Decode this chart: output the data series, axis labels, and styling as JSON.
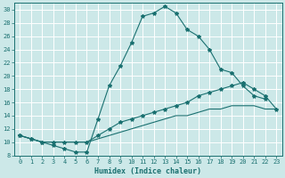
{
  "xlabel": "Humidex (Indice chaleur)",
  "bg_color": "#cce8e8",
  "grid_color": "#ffffff",
  "line_color": "#1a7070",
  "xlim": [
    -0.5,
    23.5
  ],
  "ylim": [
    8,
    31
  ],
  "yticks": [
    8,
    10,
    12,
    14,
    16,
    18,
    20,
    22,
    24,
    26,
    28,
    30
  ],
  "xticks": [
    0,
    1,
    2,
    3,
    4,
    5,
    6,
    7,
    8,
    9,
    10,
    11,
    12,
    13,
    14,
    15,
    16,
    17,
    18,
    19,
    20,
    21,
    22,
    23
  ],
  "lines": [
    {
      "x": [
        0,
        1,
        2,
        3,
        4,
        5,
        6,
        7,
        8,
        9,
        10,
        11,
        12,
        13,
        14,
        15,
        16,
        17,
        18,
        19,
        20,
        21,
        22
      ],
      "y": [
        11,
        10.5,
        10,
        9.5,
        9,
        8.5,
        8.5,
        13.5,
        18.5,
        21.5,
        25,
        29,
        29.5,
        30.5,
        29.5,
        27,
        26,
        24,
        21,
        20.5,
        18.5,
        17,
        16.5
      ],
      "marker": true
    },
    {
      "x": [
        0,
        1,
        2,
        3,
        4,
        5,
        6,
        7,
        8,
        9,
        10,
        11,
        12,
        13,
        14,
        15,
        16,
        17,
        18,
        19,
        20,
        21,
        22,
        23
      ],
      "y": [
        11,
        10.5,
        10,
        10,
        10,
        10,
        10,
        11,
        12,
        13,
        13.5,
        14,
        14.5,
        15,
        15.5,
        16,
        17,
        17.5,
        18,
        18.5,
        19,
        18,
        17,
        15
      ],
      "marker": true
    },
    {
      "x": [
        0,
        1,
        2,
        3,
        4,
        5,
        6,
        7,
        8,
        9,
        10,
        11,
        12,
        13,
        14,
        15,
        16,
        17,
        18,
        19,
        20,
        21,
        22,
        23
      ],
      "y": [
        11,
        10.5,
        10,
        10,
        10,
        10,
        10,
        10.5,
        11,
        11.5,
        12,
        12.5,
        13,
        13.5,
        14,
        14,
        14.5,
        15,
        15,
        15.5,
        15.5,
        15.5,
        15,
        15
      ],
      "marker": false
    }
  ]
}
